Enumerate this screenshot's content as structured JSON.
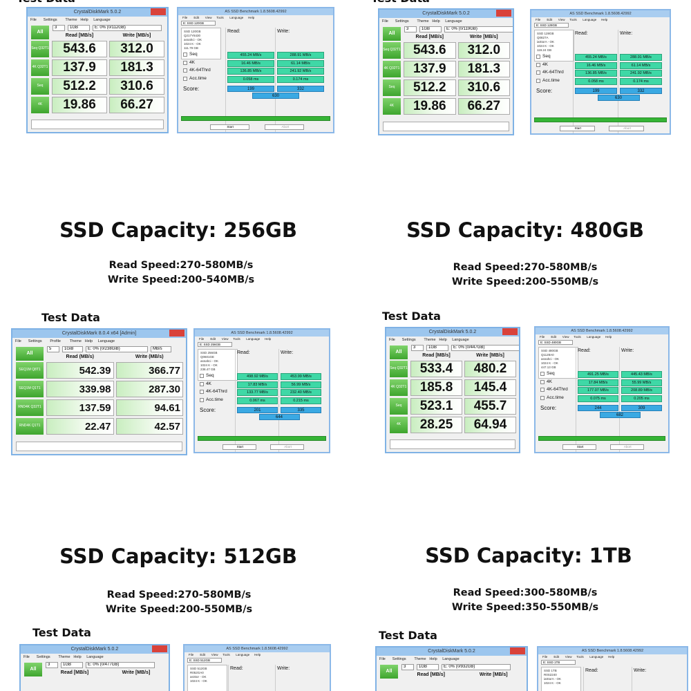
{
  "panels": [
    {
      "test_label": "Test Data",
      "cdm": {
        "title": "CrystalDiskMark 5.0.2",
        "menu": [
          "File",
          "Settings",
          "Theme",
          "Help",
          "Language"
        ],
        "all": "All",
        "selects": [
          "3",
          "1GB",
          "E: 0% (0/112GB)"
        ],
        "read_header": "Read [MB/s]",
        "write_header": "Write [MB/s]",
        "rows": [
          {
            "label": "Seq Q32T1",
            "read": "543.6",
            "write": "312.0"
          },
          {
            "label": "4K Q32T1",
            "read": "137.9",
            "write": "181.3"
          },
          {
            "label": "Seq",
            "read": "512.2",
            "write": "310.6"
          },
          {
            "label": "4K",
            "read": "19.86",
            "write": "66.27"
          }
        ]
      },
      "asssd": {
        "title": "AS SSD Benchmark 1.8.5608.42992",
        "menu": [
          "File",
          "Edit",
          "View",
          "Tools",
          "Language",
          "Help"
        ],
        "drive": "E: SSD 120GB",
        "info": [
          "SSD 120GB",
          "Q217Y8430",
          "asnahci - OK",
          "1024 K - OK",
          "111.79 GB"
        ],
        "read_header": "Read:",
        "write_header": "Write:",
        "rows": [
          {
            "label": "Seq",
            "read": "455.24 MB/s",
            "write": "288.91 MB/s"
          },
          {
            "label": "4K",
            "read": "16.46 MB/s",
            "write": "61.14 MB/s"
          },
          {
            "label": "4K-64Thrd",
            "read": "136.85 MB/s",
            "write": "241.92 MB/s"
          },
          {
            "label": "Acc.time",
            "read": "0.058 ms",
            "write": "0.174 ms"
          }
        ],
        "score_label": "Score:",
        "score_read": "199",
        "score_write": "332",
        "score_total": "630",
        "start": "Start",
        "abort": "Abort"
      }
    },
    {
      "test_label": "Test Data",
      "cdm": {
        "title": "CrystalDiskMark 5.0.2",
        "menu": [
          "File",
          "Settings",
          "Theme",
          "Help",
          "Language"
        ],
        "all": "All",
        "selects": [
          "3",
          "1GB",
          "E: 0% (0/119GB)"
        ],
        "read_header": "Read [MB/s]",
        "write_header": "Write [MB/s]",
        "rows": [
          {
            "label": "Seq Q32T1",
            "read": "543.6",
            "write": "312.0"
          },
          {
            "label": "4K Q32T1",
            "read": "137.9",
            "write": "181.3"
          },
          {
            "label": "Seq",
            "read": "512.2",
            "write": "310.6"
          },
          {
            "label": "4K",
            "read": "19.86",
            "write": "66.27"
          }
        ]
      },
      "asssd": {
        "title": "AS SSD Benchmark 1.8.5608.42992",
        "menu": [
          "File",
          "Edit",
          "View",
          "Tools",
          "Language",
          "Help"
        ],
        "drive": "E: SSD 128GB",
        "info": [
          "SSD 128GB",
          "Q0827A",
          "iaStorA - OK",
          "1024 K - OK",
          "119.24 GB"
        ],
        "read_header": "Read:",
        "write_header": "Write:",
        "rows": [
          {
            "label": "Seq",
            "read": "455.24 MB/s",
            "write": "288.91 MB/s"
          },
          {
            "label": "4K",
            "read": "16.46 MB/s",
            "write": "61.14 MB/s"
          },
          {
            "label": "4K-64Thrd",
            "read": "136.85 MB/s",
            "write": "241.92 MB/s"
          },
          {
            "label": "Acc.time",
            "read": "0.058 ms",
            "write": "0.174 ms"
          }
        ],
        "score_label": "Score:",
        "score_read": "199",
        "score_write": "332",
        "score_total": "630",
        "start": "Start",
        "abort": "Abort"
      }
    },
    {
      "title": "SSD Capacity: 256GB",
      "read_speed": "Read Speed:270-580MB/s",
      "write_speed": "Write Speed:200-540MB/s",
      "test_label": "Test Data",
      "cdm": {
        "title": "CrystalDiskMark 8.0.4 x64 [Admin]",
        "menu": [
          "File",
          "Settings",
          "Profile",
          "Theme",
          "Help",
          "Language"
        ],
        "all": "All",
        "selects": [
          "5",
          "1GiB",
          "E: 0% (0/238GiB)",
          "MB/s"
        ],
        "read_header": "Read (MB/s)",
        "write_header": "Write (MB/s)",
        "rows": [
          {
            "label": "SEQ1M Q8T1",
            "read": "542.39",
            "write": "366.77"
          },
          {
            "label": "SEQ1M Q1T1",
            "read": "339.98",
            "write": "287.30"
          },
          {
            "label": "RND4K Q32T1",
            "read": "137.59",
            "write": "94.61"
          },
          {
            "label": "RND4K Q1T1",
            "read": "22.47",
            "write": "42.57"
          }
        ]
      },
      "asssd": {
        "title": "AS SSD Benchmark 1.8.5608.42992",
        "menu": [
          "File",
          "Edit",
          "View",
          "Tools",
          "Language",
          "Help"
        ],
        "drive": "E: SSD 256GB",
        "info": [
          "SSD 256GB",
          "Q0601GE",
          "asnahci - OK",
          "1024 K - OK",
          "238.47 GB"
        ],
        "read_header": "Read:",
        "write_header": "Write:",
        "rows": [
          {
            "label": "Seq",
            "read": "498.92 MB/s",
            "write": "453.99 MB/s"
          },
          {
            "label": "4K",
            "read": "17.83 MB/s",
            "write": "56.99 MB/s"
          },
          {
            "label": "4K-64Thrd",
            "read": "133.77 MB/s",
            "write": "232.40 MB/s"
          },
          {
            "label": "Acc.time",
            "read": "0.067 ms",
            "write": "0.215 ms"
          }
        ],
        "score_label": "Score:",
        "score_read": "201",
        "score_write": "335",
        "score_total": "644",
        "start": "Start",
        "abort": "Abort"
      }
    },
    {
      "title": "SSD Capacity: 480GB",
      "read_speed": "Read Speed:270-580MB/s",
      "write_speed": "Write Speed:200-550MB/s",
      "test_label": "Test Data",
      "cdm": {
        "title": "CrystalDiskMark 5.0.2",
        "menu": [
          "File",
          "Settings",
          "Theme",
          "Help",
          "Language"
        ],
        "all": "All",
        "selects": [
          "3",
          "1GB",
          "E: 0% (0/447GB)"
        ],
        "read_header": "Read [MB/s]",
        "write_header": "Write [MB/s]",
        "rows": [
          {
            "label": "Seq Q32T1",
            "read": "533.4",
            "write": "480.2"
          },
          {
            "label": "4K Q32T1",
            "read": "185.8",
            "write": "145.4"
          },
          {
            "label": "Seq",
            "read": "523.1",
            "write": "455.7"
          },
          {
            "label": "4K",
            "read": "28.25",
            "write": "64.94"
          }
        ]
      },
      "asssd": {
        "title": "AS SSD Benchmark 1.8.5608.42992",
        "menu": [
          "File",
          "Edit",
          "View",
          "Tools",
          "Language",
          "Help"
        ],
        "drive": "E: SSD 480GB",
        "info": [
          "SSD 480GB",
          "Q1128A0",
          "asnahci - OK",
          "1024 K - OK",
          "447.13 GB"
        ],
        "read_header": "Read:",
        "write_header": "Write:",
        "rows": [
          {
            "label": "Seq",
            "read": "491.25 MB/s",
            "write": "445.43 MB/s"
          },
          {
            "label": "4K",
            "read": "17.84 MB/s",
            "write": "55.99 MB/s"
          },
          {
            "label": "4K-64Thrd",
            "read": "177.07 MB/s",
            "write": "208.89 MB/s"
          },
          {
            "label": "Acc.time",
            "read": "0.075 ms",
            "write": "0.205 ms"
          }
        ],
        "score_label": "Score:",
        "score_read": "244",
        "score_write": "309",
        "score_total": "682",
        "start": "Start",
        "abort": "Abort"
      }
    },
    {
      "title": "SSD Capacity: 512GB",
      "read_speed": "Read Speed:270-580MB/s",
      "write_speed": "Write Speed:200-550MB/s",
      "test_label": "Test Data",
      "cdm": {
        "title": "CrystalDiskMark 5.0.2",
        "menu": [
          "File",
          "Settings",
          "Theme",
          "Help",
          "Language"
        ],
        "all": "All",
        "selects": [
          "3",
          "1GB",
          "E: 0% (0/477GB)"
        ],
        "read_header": "Read [MB/s]",
        "write_header": "Write [MB/s]",
        "rows": []
      },
      "asssd": {
        "title": "AS SSD Benchmark 1.8.5608.42992",
        "menu": [
          "File",
          "Edit",
          "View",
          "Tools",
          "Language",
          "Help"
        ],
        "drive": "E: SSD 512GB",
        "info": [
          "SSD 512GB",
          "R052GA0",
          "asStor - OK",
          "1024 K - OK"
        ],
        "read_header": "Read:",
        "write_header": "Write:",
        "rows": []
      }
    },
    {
      "title": "SSD Capacity: 1TB",
      "read_speed": "Read Speed:300-580MB/s",
      "write_speed": "Write Speed:350-550MB/s",
      "test_label": "Test Data",
      "cdm": {
        "title": "CrystalDiskMark 5.0.2",
        "menu": [
          "File",
          "Settings",
          "Theme",
          "Help",
          "Language"
        ],
        "all": "All",
        "selects": [
          "3",
          "1GB",
          "E: 0% (0/932GB)"
        ],
        "read_header": "Read [MB/s]",
        "write_header": "Write [MB/s]",
        "rows": []
      },
      "asssd": {
        "title": "AS SSD Benchmark 1.8.5608.42992",
        "menu": [
          "File",
          "Edit",
          "View",
          "Tools",
          "Language",
          "Help"
        ],
        "drive": "E: SSD 1TB",
        "info": [
          "SSD 1TB",
          "R0S2240",
          "iaStorA - OK",
          "1024 K - OK"
        ],
        "read_header": "Read:",
        "write_header": "Write:",
        "rows": []
      }
    }
  ]
}
